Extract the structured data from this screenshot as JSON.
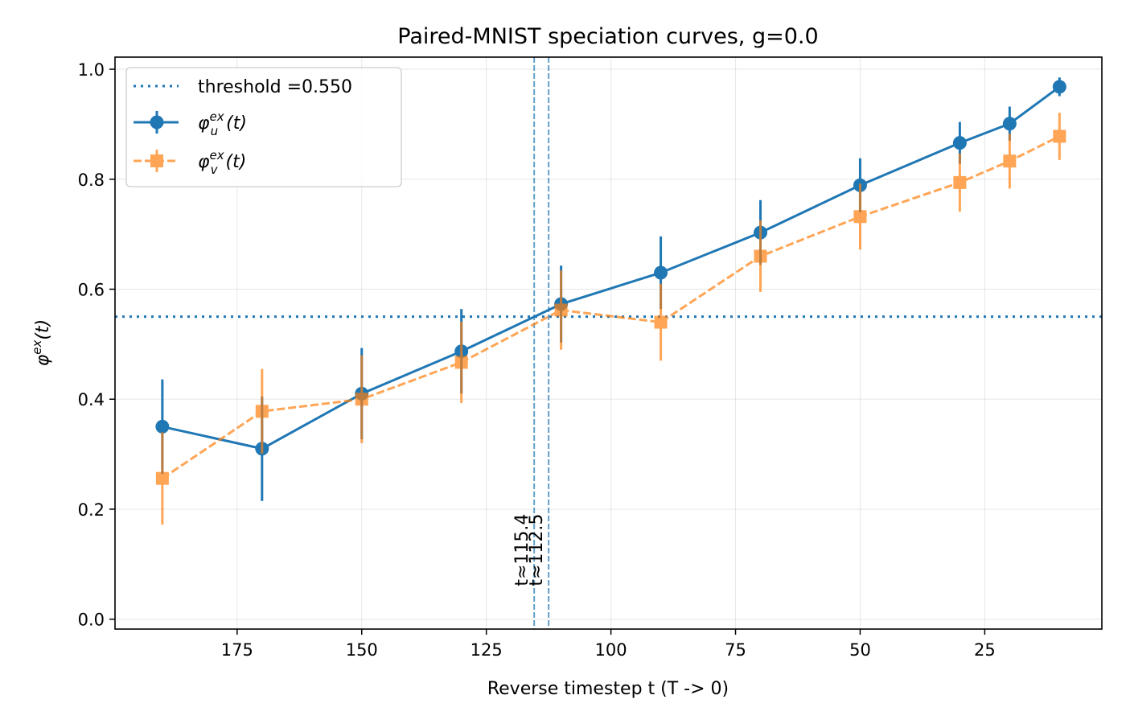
{
  "chart_data": {
    "type": "line",
    "title": "Paired-MNIST speciation curves, g=0.0",
    "xlabel": "Reverse timestep t (T -> 0)",
    "ylabel_base": "φ",
    "ylabel_sup": "ex",
    "ylabel_tail": "(t)",
    "xlim": [
      199.5,
      1.5
    ],
    "ylim": [
      -0.018,
      1.022
    ],
    "x_ticks": [
      175,
      150,
      125,
      100,
      75,
      50,
      25
    ],
    "x_tick_labels": [
      "175",
      "150",
      "125",
      "100",
      "75",
      "50",
      "25"
    ],
    "y_ticks": [
      0.0,
      0.2,
      0.4,
      0.6,
      0.8,
      1.0
    ],
    "y_tick_labels": [
      "0.0",
      "0.2",
      "0.4",
      "0.6",
      "0.8",
      "1.0"
    ],
    "grid": true,
    "legend_position": "upper-left",
    "threshold": {
      "label": "threshold =0.550",
      "value": 0.55,
      "color": "#1f77b4"
    },
    "series": [
      {
        "name_base": "φ",
        "name_sup": "ex",
        "name_sub": "u",
        "name_tail": "(t)",
        "color": "#1f77b4",
        "marker": "circle",
        "line_style": "solid",
        "x": [
          190,
          170,
          150,
          130,
          110,
          90,
          70,
          50,
          30,
          20,
          10
        ],
        "y": [
          0.35,
          0.31,
          0.41,
          0.487,
          0.573,
          0.63,
          0.703,
          0.789,
          0.866,
          0.901,
          0.968
        ],
        "err": [
          0.086,
          0.095,
          0.083,
          0.077,
          0.07,
          0.066,
          0.059,
          0.049,
          0.038,
          0.031,
          0.017
        ]
      },
      {
        "name_base": "φ",
        "name_sup": "ex",
        "name_sub": "v",
        "name_tail": "(t)",
        "color": "#ff7f0e",
        "marker": "square",
        "line_style": "dashed",
        "x": [
          190,
          170,
          150,
          130,
          110,
          90,
          70,
          50,
          30,
          20,
          10
        ],
        "y": [
          0.256,
          0.378,
          0.4,
          0.467,
          0.562,
          0.54,
          0.66,
          0.732,
          0.794,
          0.833,
          0.878
        ],
        "err": [
          0.084,
          0.077,
          0.08,
          0.074,
          0.072,
          0.07,
          0.065,
          0.06,
          0.053,
          0.05,
          0.043
        ]
      }
    ],
    "crossings": [
      {
        "x": 115.4,
        "label": "t≈115.4"
      },
      {
        "x": 112.5,
        "label": "t≈112.5"
      }
    ]
  }
}
